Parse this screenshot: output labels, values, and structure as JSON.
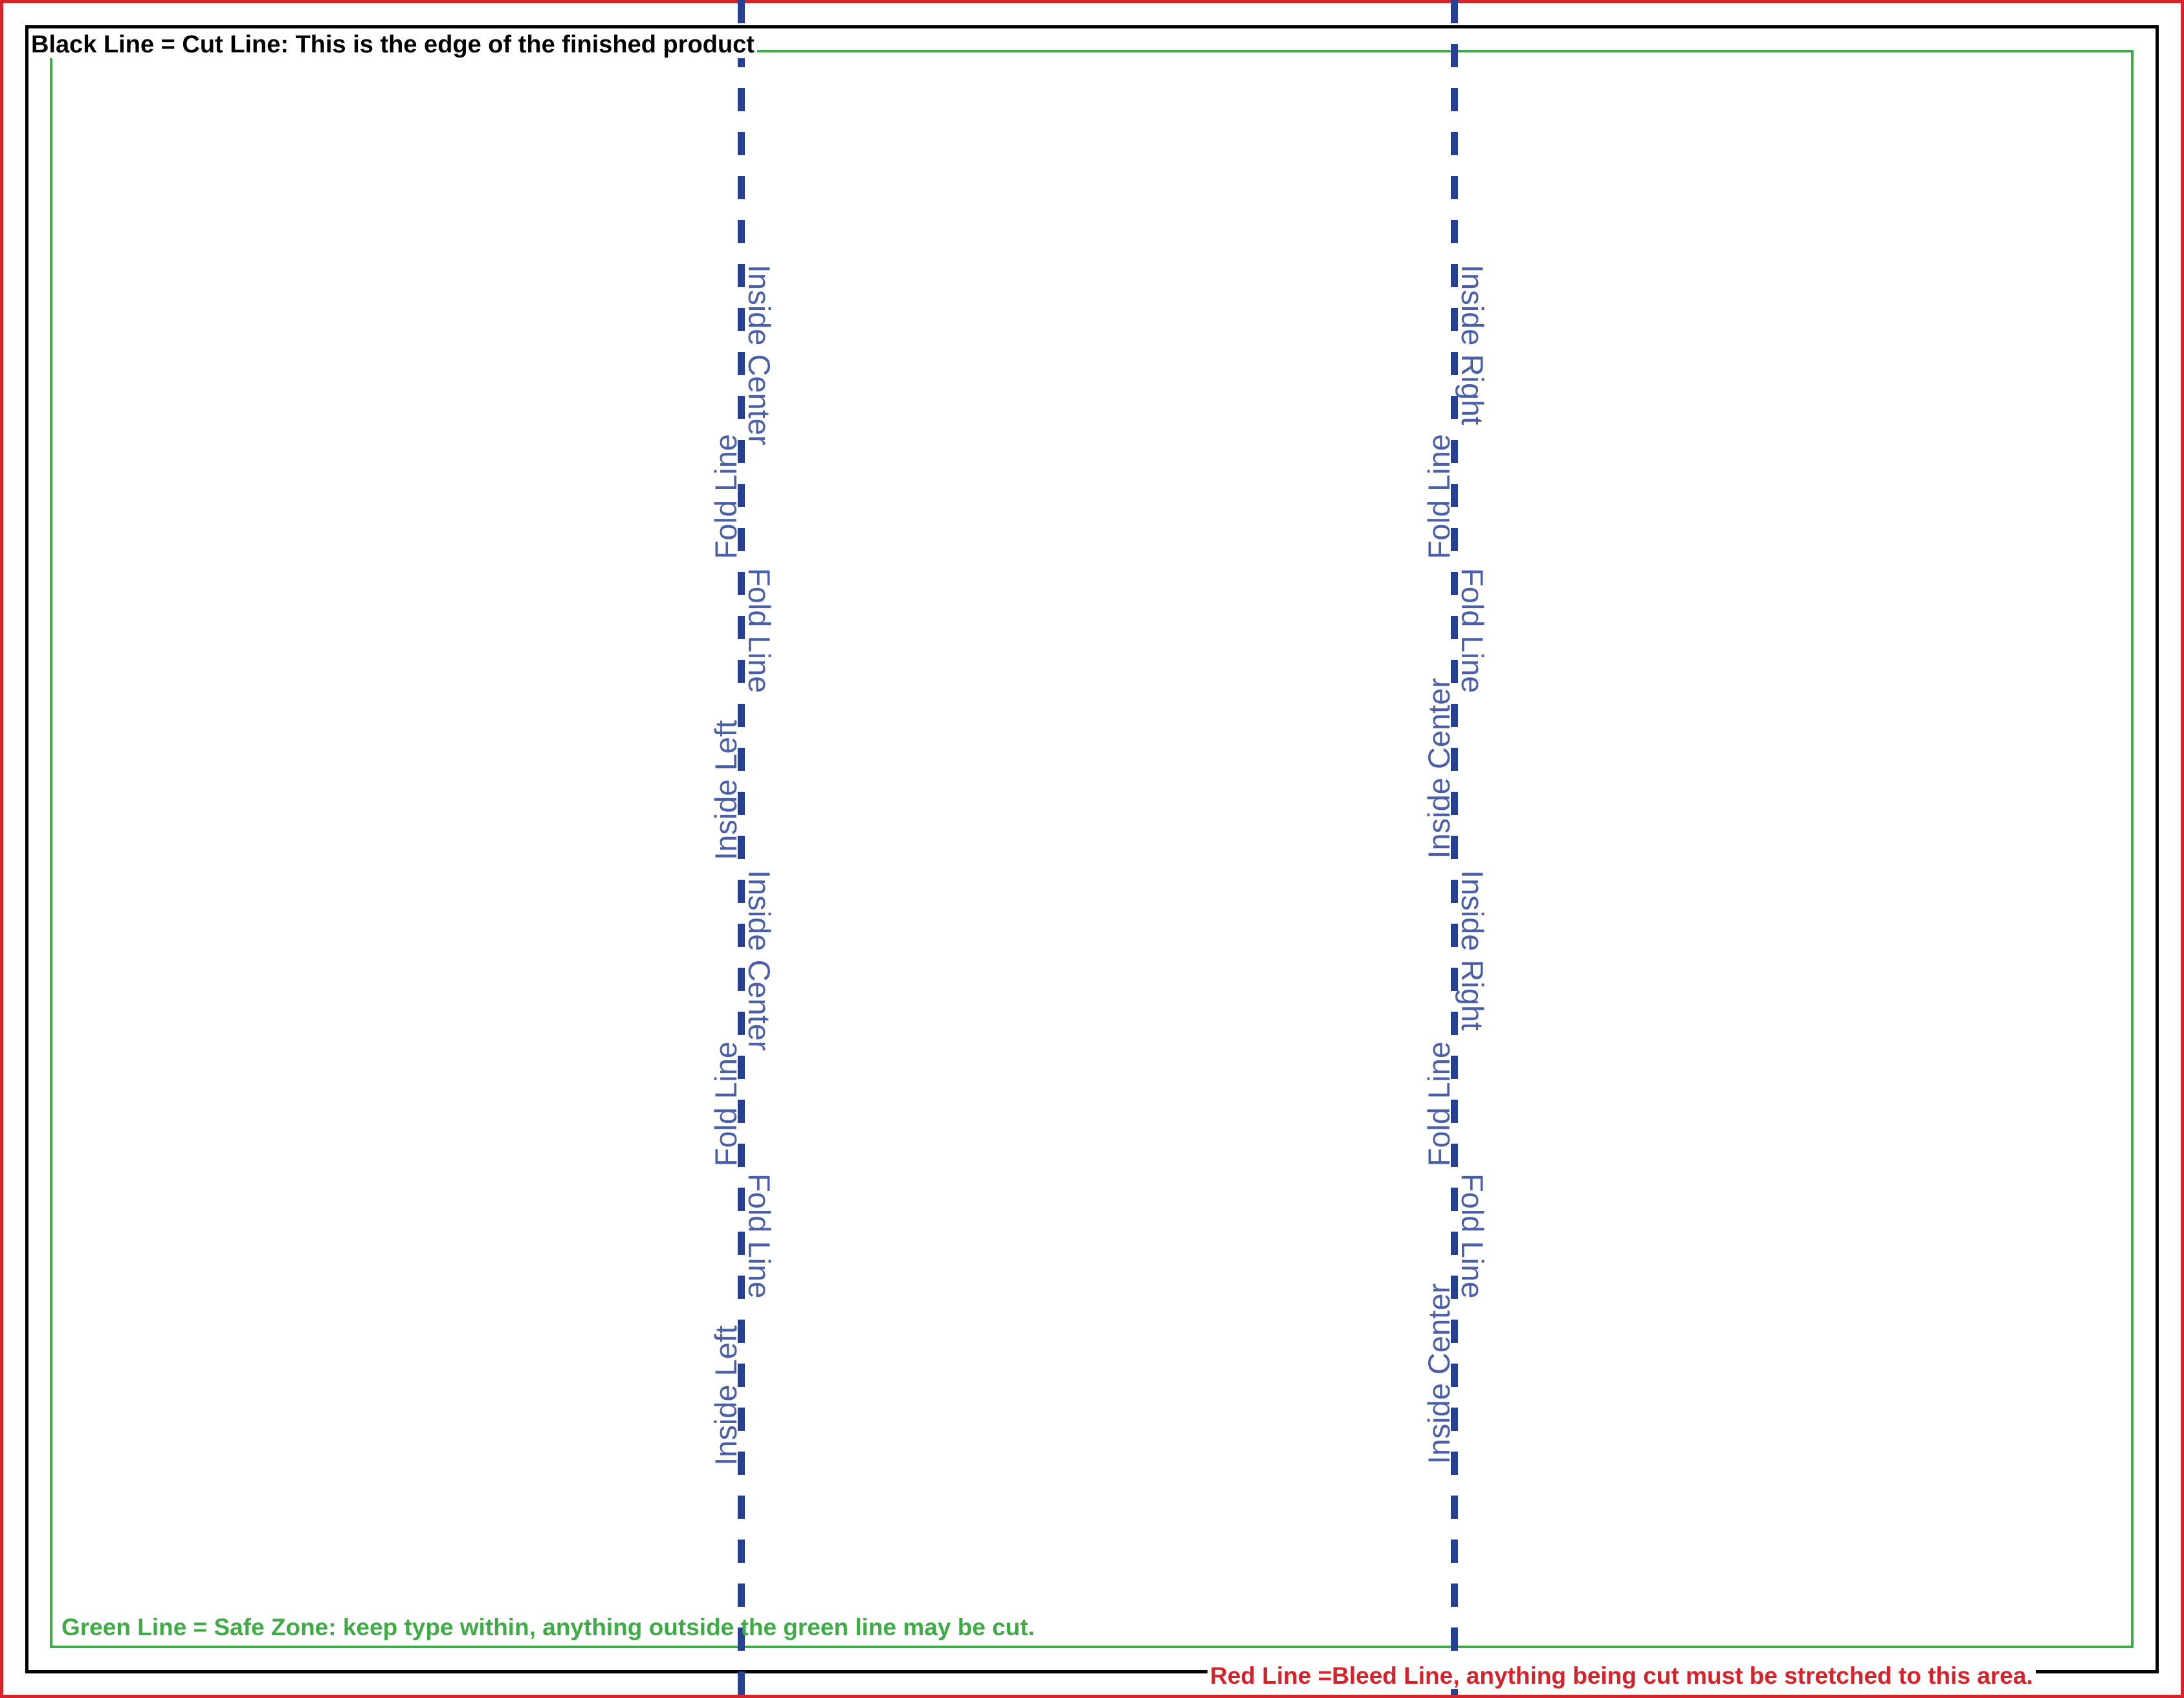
{
  "colors": {
    "bleed": "#d4232b",
    "cut": "#000000",
    "safe": "#3fab47",
    "fold": "#27408f"
  },
  "notes": {
    "cut": "Black Line = Cut Line: This is the edge of the finished product",
    "safe": "Green Line = Safe Zone: keep type within, anything outside the green line may be cut.",
    "bleed": "Red Line =Bleed Line, anything being cut must be stretched to this area."
  },
  "fold_left": {
    "labels": [
      "Inside Center",
      "Fold Line",
      "Fold Line",
      "Inside Left",
      "Inside Center",
      "Fold Line",
      "Fold Line",
      "Inside Left"
    ]
  },
  "fold_right": {
    "labels": [
      "Inside Right",
      "Fold Line",
      "Fold Line",
      "Inside Center",
      "Inside Right",
      "Fold Line",
      "Fold Line",
      "Inside Center"
    ]
  }
}
